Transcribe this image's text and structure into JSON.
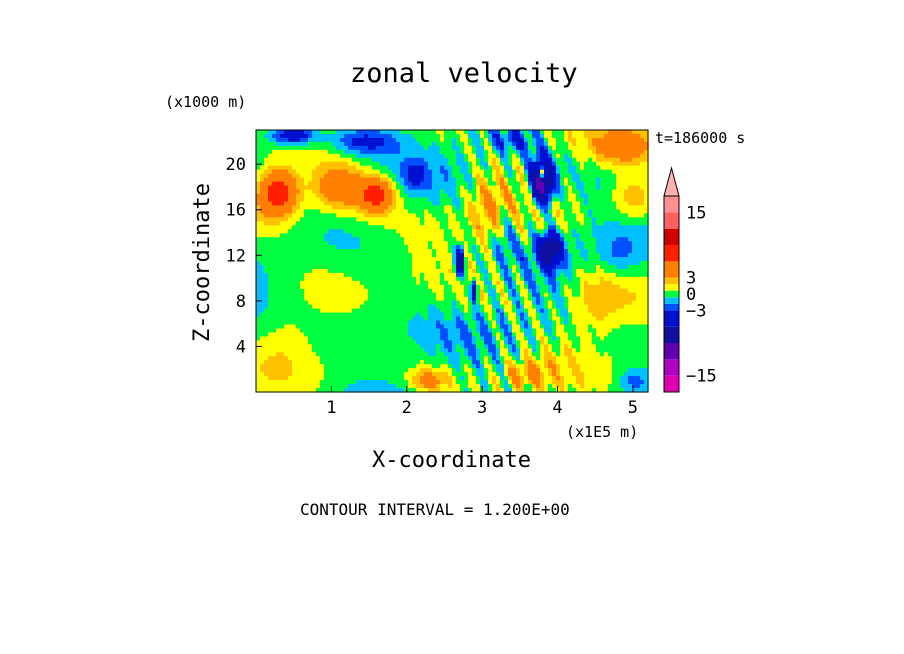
{
  "chart_data": {
    "type": "heatmap",
    "title": "zonal velocity",
    "subtitle": "t=186000 s",
    "xlabel": "X-coordinate",
    "ylabel": "Z-coordinate",
    "x_unit": "(x1E5 m)",
    "y_unit": "(x1000 m)",
    "xlim": [
      0,
      5.2
    ],
    "ylim": [
      0,
      23
    ],
    "x_ticks": [
      1,
      2,
      3,
      4,
      5
    ],
    "y_ticks": [
      4,
      8,
      12,
      16,
      20
    ],
    "contour_interval_text": "CONTOUR INTERVAL = 1.200E+00",
    "colorbar": {
      "tick_labels": [
        "15",
        "3",
        "0",
        "−3",
        "−15"
      ],
      "tick_values": [
        15,
        3,
        0,
        -3,
        -15
      ],
      "levels": [
        {
          "value": -18,
          "color": "#e000b0"
        },
        {
          "value": -15,
          "color": "#b000c0"
        },
        {
          "value": -12,
          "color": "#6000b0"
        },
        {
          "value": -9,
          "color": "#1010a0"
        },
        {
          "value": -6,
          "color": "#0010d0"
        },
        {
          "value": -3,
          "color": "#0050ff"
        },
        {
          "value": -1.8,
          "color": "#00c0ff"
        },
        {
          "value": -0.6,
          "color": "#00ff40"
        },
        {
          "value": 0.6,
          "color": "#ffff00"
        },
        {
          "value": 1.8,
          "color": "#ffc000"
        },
        {
          "value": 3,
          "color": "#ff8000"
        },
        {
          "value": 6,
          "color": "#ff2000"
        },
        {
          "value": 9,
          "color": "#d00000"
        },
        {
          "value": 12,
          "color": "#ff6060"
        },
        {
          "value": 15,
          "color": "#ff9090"
        },
        {
          "value": 18,
          "color": "#ffb0b0"
        }
      ]
    },
    "features": [
      {
        "x": 0.3,
        "z": 17.5,
        "value": 8,
        "sx": 0.25,
        "sz": 2.0
      },
      {
        "x": 1.1,
        "z": 18.0,
        "value": 5,
        "sx": 0.35,
        "sz": 2.0
      },
      {
        "x": 1.6,
        "z": 17.3,
        "value": 7,
        "sx": 0.25,
        "sz": 1.6
      },
      {
        "x": 1.4,
        "z": 22.0,
        "value": -4,
        "sx": 0.5,
        "sz": 1.2
      },
      {
        "x": 0.5,
        "z": 22.5,
        "value": -6,
        "sx": 0.3,
        "sz": 0.8
      },
      {
        "x": 3.4,
        "z": 22.0,
        "value": -3,
        "sx": 0.3,
        "sz": 1.0
      },
      {
        "x": 3.8,
        "z": 18.5,
        "value": -12,
        "sx": 0.15,
        "sz": 2.0
      },
      {
        "x": 3.8,
        "z": 19.2,
        "value": 10,
        "sx": 0.05,
        "sz": 0.6
      },
      {
        "x": 3.9,
        "z": 12.5,
        "value": -9,
        "sx": 0.15,
        "sz": 1.5
      },
      {
        "x": 2.7,
        "z": 11.5,
        "value": -10,
        "sx": 0.06,
        "sz": 1.2
      },
      {
        "x": 2.9,
        "z": 9.0,
        "value": -7,
        "sx": 0.04,
        "sz": 0.8
      },
      {
        "x": 4.9,
        "z": 21.5,
        "value": 4,
        "sx": 0.4,
        "sz": 1.5
      },
      {
        "x": 5.0,
        "z": 17.0,
        "value": 3,
        "sx": 0.3,
        "sz": 2.0
      },
      {
        "x": 1.0,
        "z": 12.0,
        "value": 1,
        "sx": 0.8,
        "sz": 3.0
      },
      {
        "x": 1.5,
        "z": 7.0,
        "value": -1,
        "sx": 0.6,
        "sz": 3.0
      },
      {
        "x": 0.4,
        "z": 5.0,
        "value": 1.5,
        "sx": 0.4,
        "sz": 2.5
      },
      {
        "x": 3.1,
        "z": 16.0,
        "value": 2.5,
        "sx": 0.25,
        "sz": 3.0
      },
      {
        "x": 4.5,
        "z": 8.0,
        "value": 2.5,
        "sx": 0.35,
        "sz": 3.0
      },
      {
        "x": 2.3,
        "z": 1.0,
        "value": 4,
        "sx": 0.25,
        "sz": 1.0
      },
      {
        "x": 3.6,
        "z": 1.5,
        "value": 3,
        "sx": 0.3,
        "sz": 1.2
      },
      {
        "x": 5.0,
        "z": 1.0,
        "value": -2,
        "sx": 0.2,
        "sz": 1.0
      },
      {
        "x": 3.3,
        "z": 14.0,
        "value": -2,
        "sx": 0.15,
        "sz": 2.0
      },
      {
        "x": 4.8,
        "z": 12.0,
        "value": -1.5,
        "sx": 0.25,
        "sz": 2.0
      },
      {
        "x": 2.1,
        "z": 19.0,
        "value": -2.5,
        "sx": 0.15,
        "sz": 1.2
      }
    ]
  }
}
